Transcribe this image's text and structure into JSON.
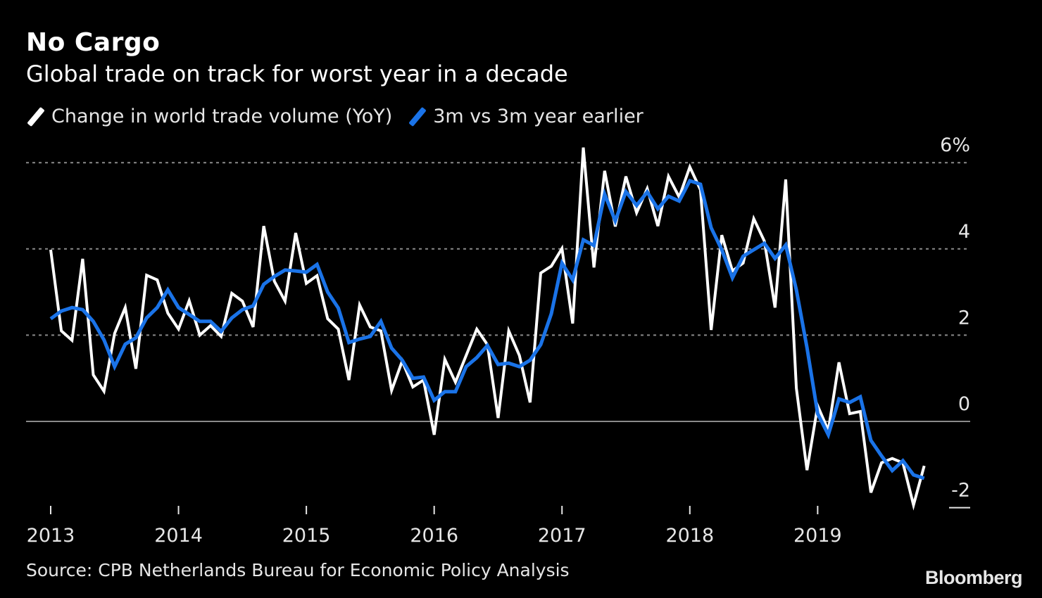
{
  "chart_data": {
    "type": "line",
    "title": "No Cargo",
    "subtitle": "Global trade on track for worst year in a decade",
    "source": "Source: CPB Netherlands Bureau for Economic Policy Analysis",
    "logo": "Bloomberg",
    "x_start": "2013-01",
    "x_step": "month",
    "x_ticks": [
      "2013",
      "2014",
      "2015",
      "2016",
      "2017",
      "2018",
      "2019"
    ],
    "y_ticks": [
      {
        "value": 6,
        "label": "6%"
      },
      {
        "value": 4,
        "label": "4"
      },
      {
        "value": 2,
        "label": "2"
      },
      {
        "value": 0,
        "label": "0"
      },
      {
        "value": -2,
        "label": "-2"
      }
    ],
    "ylim": [
      -2,
      6
    ],
    "grid": true,
    "legend_position": "top-left",
    "series": [
      {
        "name": "Change in world trade volume (YoY)",
        "color": "#ffffff",
        "values": [
          3.98,
          2.1,
          1.88,
          3.77,
          1.08,
          0.7,
          2.04,
          2.64,
          1.22,
          3.39,
          3.28,
          2.51,
          2.14,
          2.8,
          2.0,
          2.22,
          1.97,
          2.97,
          2.79,
          2.19,
          4.53,
          3.25,
          2.79,
          4.37,
          3.2,
          3.38,
          2.38,
          2.14,
          0.96,
          2.7,
          2.19,
          2.1,
          0.72,
          1.4,
          0.8,
          0.96,
          -0.31,
          1.44,
          0.91,
          1.53,
          2.14,
          1.78,
          0.08,
          2.1,
          1.53,
          0.44,
          3.44,
          3.6,
          4.01,
          2.27,
          6.35,
          3.57,
          5.81,
          4.52,
          5.68,
          4.84,
          5.4,
          4.53,
          5.68,
          5.2,
          5.9,
          5.37,
          2.12,
          4.32,
          3.49,
          3.67,
          4.7,
          4.18,
          2.64,
          5.61,
          0.77,
          -1.13,
          0.36,
          -0.21,
          1.37,
          0.18,
          0.23,
          -1.65,
          -0.96,
          -0.86,
          -0.96,
          -1.94,
          -1.03
        ]
      },
      {
        "name": "3m vs 3m year earlier",
        "color": "#1a73e8",
        "values": [
          2.38,
          2.56,
          2.64,
          2.59,
          2.32,
          1.89,
          1.27,
          1.79,
          1.94,
          2.4,
          2.64,
          3.05,
          2.64,
          2.48,
          2.32,
          2.32,
          2.09,
          2.4,
          2.59,
          2.68,
          3.18,
          3.36,
          3.51,
          3.49,
          3.46,
          3.64,
          3.0,
          2.63,
          1.83,
          1.91,
          1.97,
          2.32,
          1.7,
          1.42,
          1.0,
          1.03,
          0.49,
          0.69,
          0.69,
          1.27,
          1.48,
          1.76,
          1.32,
          1.35,
          1.27,
          1.42,
          1.78,
          2.5,
          3.67,
          3.28,
          4.21,
          4.08,
          5.27,
          4.65,
          5.33,
          5.01,
          5.32,
          4.93,
          5.22,
          5.11,
          5.58,
          5.5,
          4.49,
          3.98,
          3.33,
          3.83,
          3.98,
          4.13,
          3.78,
          4.09,
          3.05,
          1.71,
          0.18,
          -0.31,
          0.52,
          0.44,
          0.57,
          -0.44,
          -0.8,
          -1.14,
          -0.91,
          -1.24,
          -1.32
        ]
      }
    ]
  }
}
